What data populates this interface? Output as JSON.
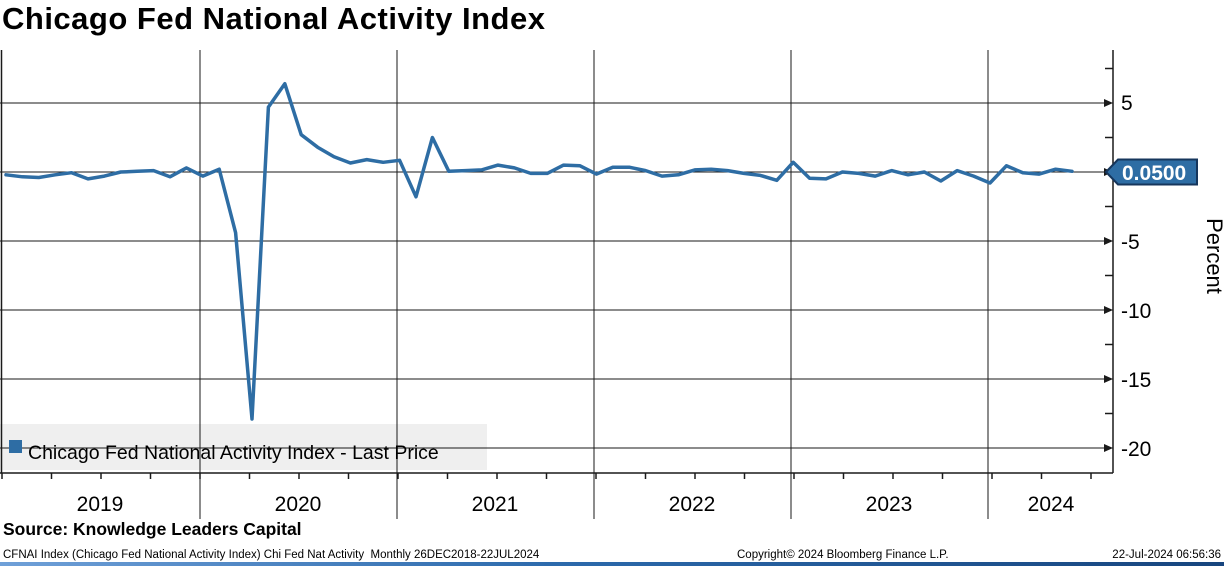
{
  "header": {
    "title": "Chicago Fed National Activity Index"
  },
  "chart_data": {
    "type": "line",
    "title": "Chicago Fed National Activity Index",
    "xlabel": "",
    "ylabel": "Percent",
    "x_tick_labels": [
      "2019",
      "2020",
      "2021",
      "2022",
      "2023",
      "2024"
    ],
    "y_tick_labels": [
      "5",
      "-5",
      "-10",
      "-15",
      "-20"
    ],
    "yticks_major": [
      5,
      0,
      -5,
      -10,
      -15,
      -20
    ],
    "yticks_minor": [
      7.5,
      2.5,
      -2.5,
      -7.5,
      -12.5,
      -17.5
    ],
    "ylim": [
      -21.8,
      8.8
    ],
    "grid": true,
    "legend_position": "bottom-left-inside",
    "frequency": "Monthly",
    "date_range": "26DEC2018-22JUL2024",
    "last_price": 0.05,
    "series": [
      {
        "name": "Chicago Fed National Activity Index - Last Price",
        "color": "#2E6DA4",
        "months": [
          "2019-01",
          "2019-02",
          "2019-03",
          "2019-04",
          "2019-05",
          "2019-06",
          "2019-07",
          "2019-08",
          "2019-09",
          "2019-10",
          "2019-11",
          "2019-12",
          "2020-01",
          "2020-02",
          "2020-03",
          "2020-04",
          "2020-05",
          "2020-06",
          "2020-07",
          "2020-08",
          "2020-09",
          "2020-10",
          "2020-11",
          "2020-12",
          "2021-01",
          "2021-02",
          "2021-03",
          "2021-04",
          "2021-05",
          "2021-06",
          "2021-07",
          "2021-08",
          "2021-09",
          "2021-10",
          "2021-11",
          "2021-12",
          "2022-01",
          "2022-02",
          "2022-03",
          "2022-04",
          "2022-05",
          "2022-06",
          "2022-07",
          "2022-08",
          "2022-09",
          "2022-10",
          "2022-11",
          "2022-12",
          "2023-01",
          "2023-02",
          "2023-03",
          "2023-04",
          "2023-05",
          "2023-06",
          "2023-07",
          "2023-08",
          "2023-09",
          "2023-10",
          "2023-11",
          "2023-12",
          "2024-01",
          "2024-02",
          "2024-03",
          "2024-04",
          "2024-05",
          "2024-06"
        ],
        "values": [
          -0.2,
          -0.35,
          -0.4,
          -0.2,
          -0.05,
          -0.5,
          -0.3,
          0.0,
          0.05,
          0.1,
          -0.35,
          0.3,
          -0.3,
          0.2,
          -4.4,
          -17.9,
          4.7,
          6.4,
          2.7,
          1.8,
          1.1,
          0.65,
          0.9,
          0.7,
          0.85,
          -1.8,
          2.5,
          0.05,
          0.1,
          0.15,
          0.5,
          0.3,
          -0.1,
          -0.1,
          0.5,
          0.45,
          -0.15,
          0.35,
          0.35,
          0.1,
          -0.3,
          -0.2,
          0.15,
          0.2,
          0.1,
          -0.1,
          -0.25,
          -0.6,
          0.7,
          -0.45,
          -0.5,
          0.0,
          -0.1,
          -0.3,
          0.1,
          -0.2,
          0.0,
          -0.65,
          0.1,
          -0.3,
          -0.8,
          0.45,
          -0.05,
          -0.15,
          0.2,
          0.05
        ]
      }
    ]
  },
  "legend": {
    "label": "Chicago Fed National Activity Index - Last Price",
    "marker_color": "#2E6DA4"
  },
  "price_tag": {
    "value": "0.0500",
    "bg": "#2E6DA4",
    "border": "#16365C",
    "text_color": "#FFFFFF"
  },
  "source": {
    "text": "Source: Knowledge Leaders Capital"
  },
  "footer": {
    "left": "CFNAI Index (Chicago Fed National Activity Index) Chi Fed Nat Activity  Monthly 26DEC2018-22JUL2024",
    "copyright": "Copyright© 2024 Bloomberg Finance L.P.",
    "timestamp": "22-Jul-2024 06:56:36"
  },
  "colors": {
    "line": "#2E6DA4",
    "grid": "#1A1A1A",
    "legend_bg": "#EFEFEF",
    "label_text": "#000000"
  }
}
